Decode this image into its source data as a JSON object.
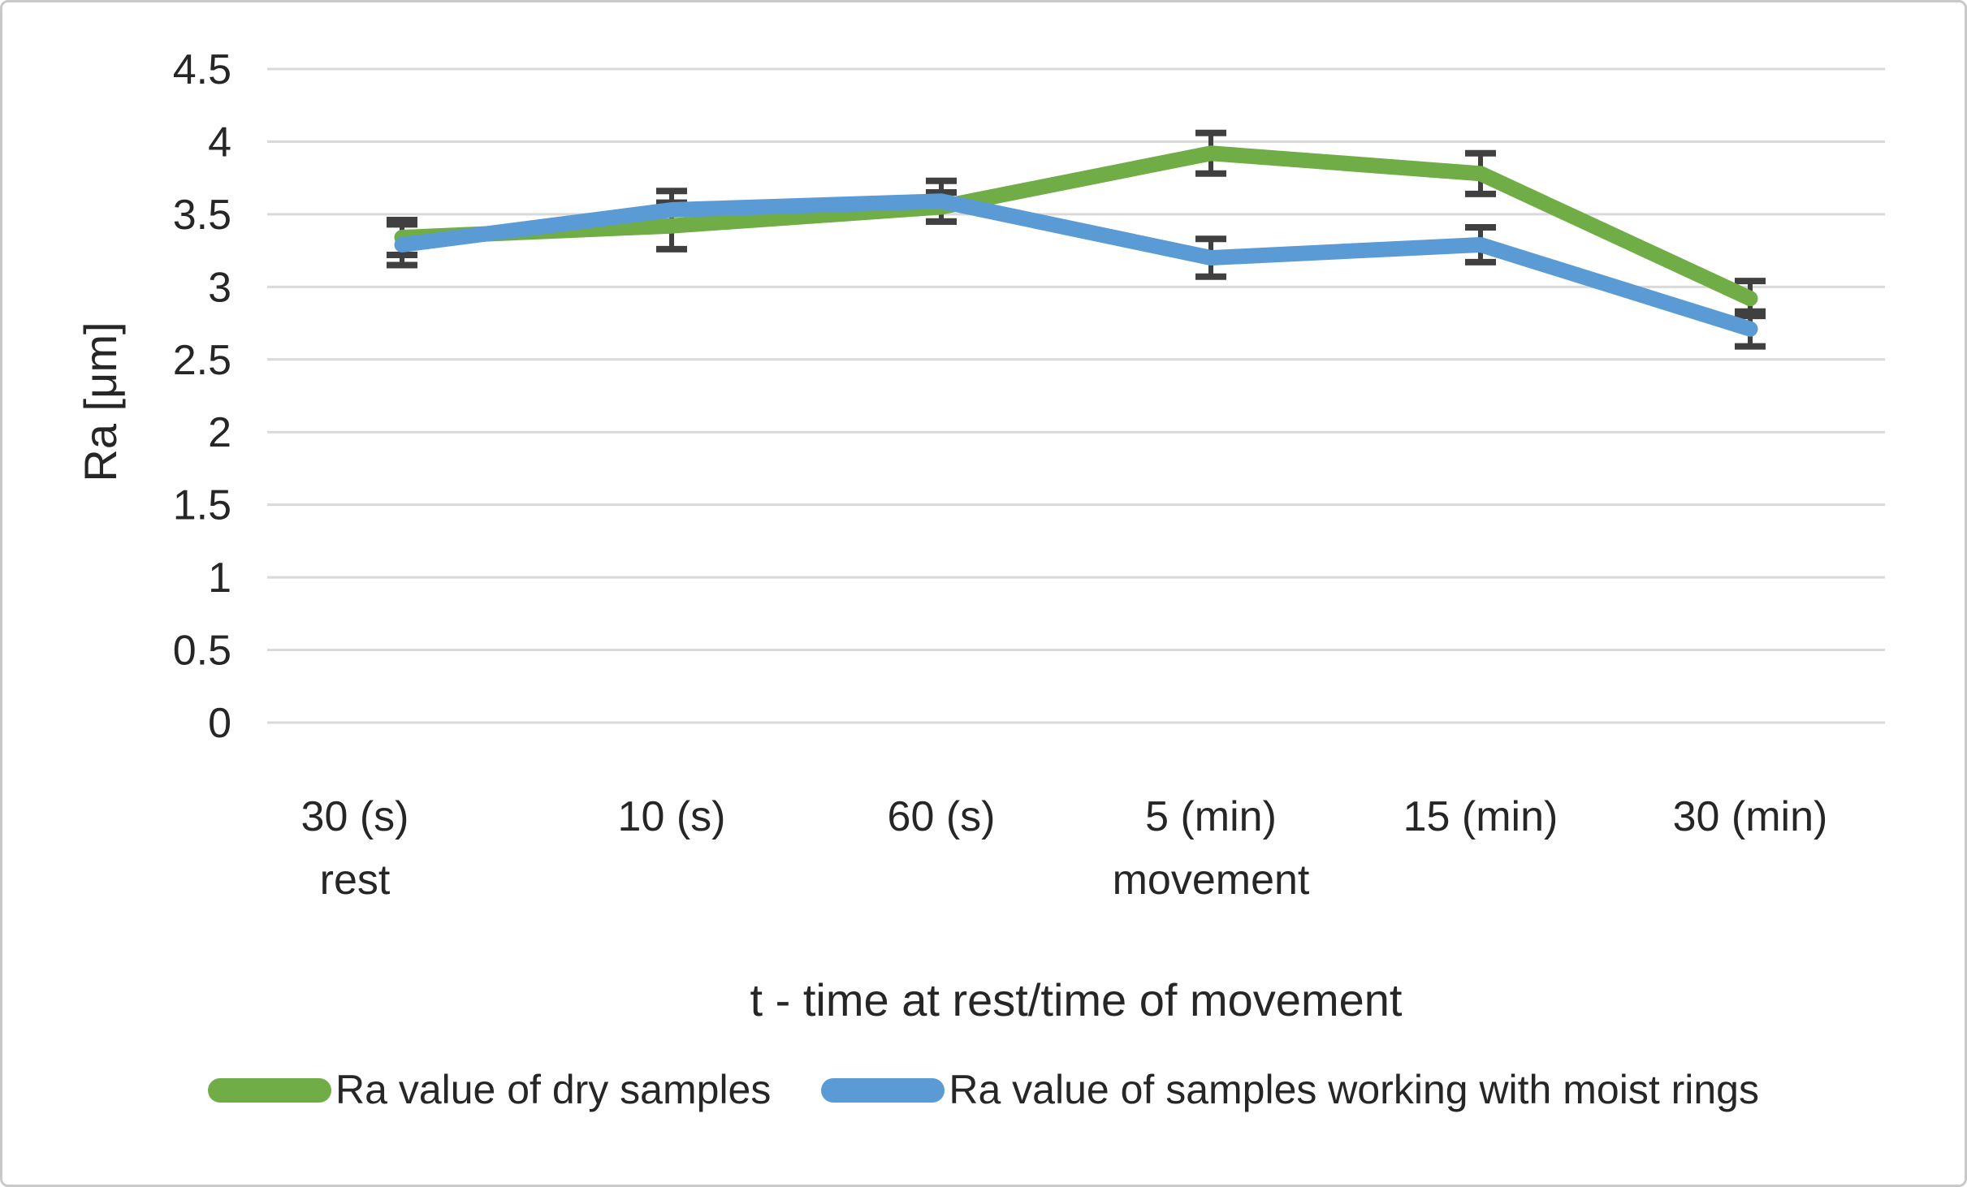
{
  "figure": {
    "background": "#ffffff",
    "border_color": "#c9c9c9"
  },
  "chart_data": {
    "type": "line",
    "categories": [
      "30 (s)",
      "10 (s)",
      "60 (s)",
      "5 (min)",
      "15 (min)",
      "30 (min)"
    ],
    "category_sub_labels": [
      {
        "index": 0,
        "label": "rest"
      },
      {
        "index": 3,
        "label": "movement"
      }
    ],
    "xlabel": "t - time at rest/time of movement",
    "ylabel": "Ra [μm]",
    "ylim": [
      0,
      4.5
    ],
    "ytick_step": 0.5,
    "grid": true,
    "legend_position": "bottom",
    "gridline_color": "#d9d9d9",
    "error_bar_color": "#404040",
    "text_color": "#262626",
    "series": [
      {
        "name": "Ra value of dry samples",
        "color": "#70ad47",
        "values": [
          3.34,
          3.42,
          3.55,
          3.92,
          3.78,
          2.92
        ],
        "errors": [
          0.12,
          0.16,
          0.1,
          0.14,
          0.14,
          0.12
        ]
      },
      {
        "name": "Ra value of samples working with moist rings",
        "color": "#5b9bd5",
        "values": [
          3.29,
          3.53,
          3.59,
          3.2,
          3.29,
          2.71
        ],
        "errors": [
          0.14,
          0.13,
          0.14,
          0.13,
          0.12,
          0.12
        ]
      }
    ]
  }
}
